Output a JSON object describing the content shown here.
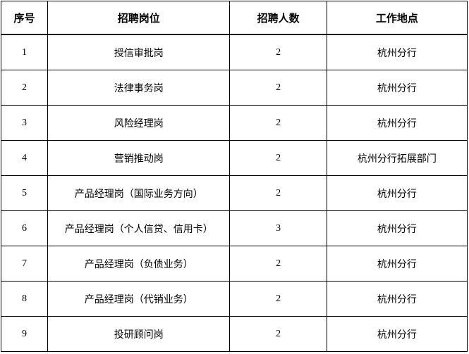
{
  "headers": [
    "序号",
    "招聘岗位",
    "招聘人数",
    "工作地点"
  ],
  "rows": [
    [
      "1",
      "授信审批岗",
      "2",
      "杭州分行"
    ],
    [
      "2",
      "法律事务岗",
      "2",
      "杭州分行"
    ],
    [
      "3",
      "风险经理岗",
      "2",
      "杭州分行"
    ],
    [
      "4",
      "营销推动岗",
      "2",
      "杭州分行拓展部门"
    ],
    [
      "5",
      "产品经理岗（国际业务方向）",
      "2",
      "杭州分行"
    ],
    [
      "6",
      "产品经理岗（个人信贷、信用卡）",
      "3",
      "杭州分行"
    ],
    [
      "7",
      "产品经理岗（负债业务）",
      "2",
      "杭州分行"
    ],
    [
      "8",
      "产品经理岗（代销业务）",
      "2",
      "杭州分行"
    ],
    [
      "9",
      "投研顾问岗",
      "2",
      "杭州分行"
    ]
  ]
}
